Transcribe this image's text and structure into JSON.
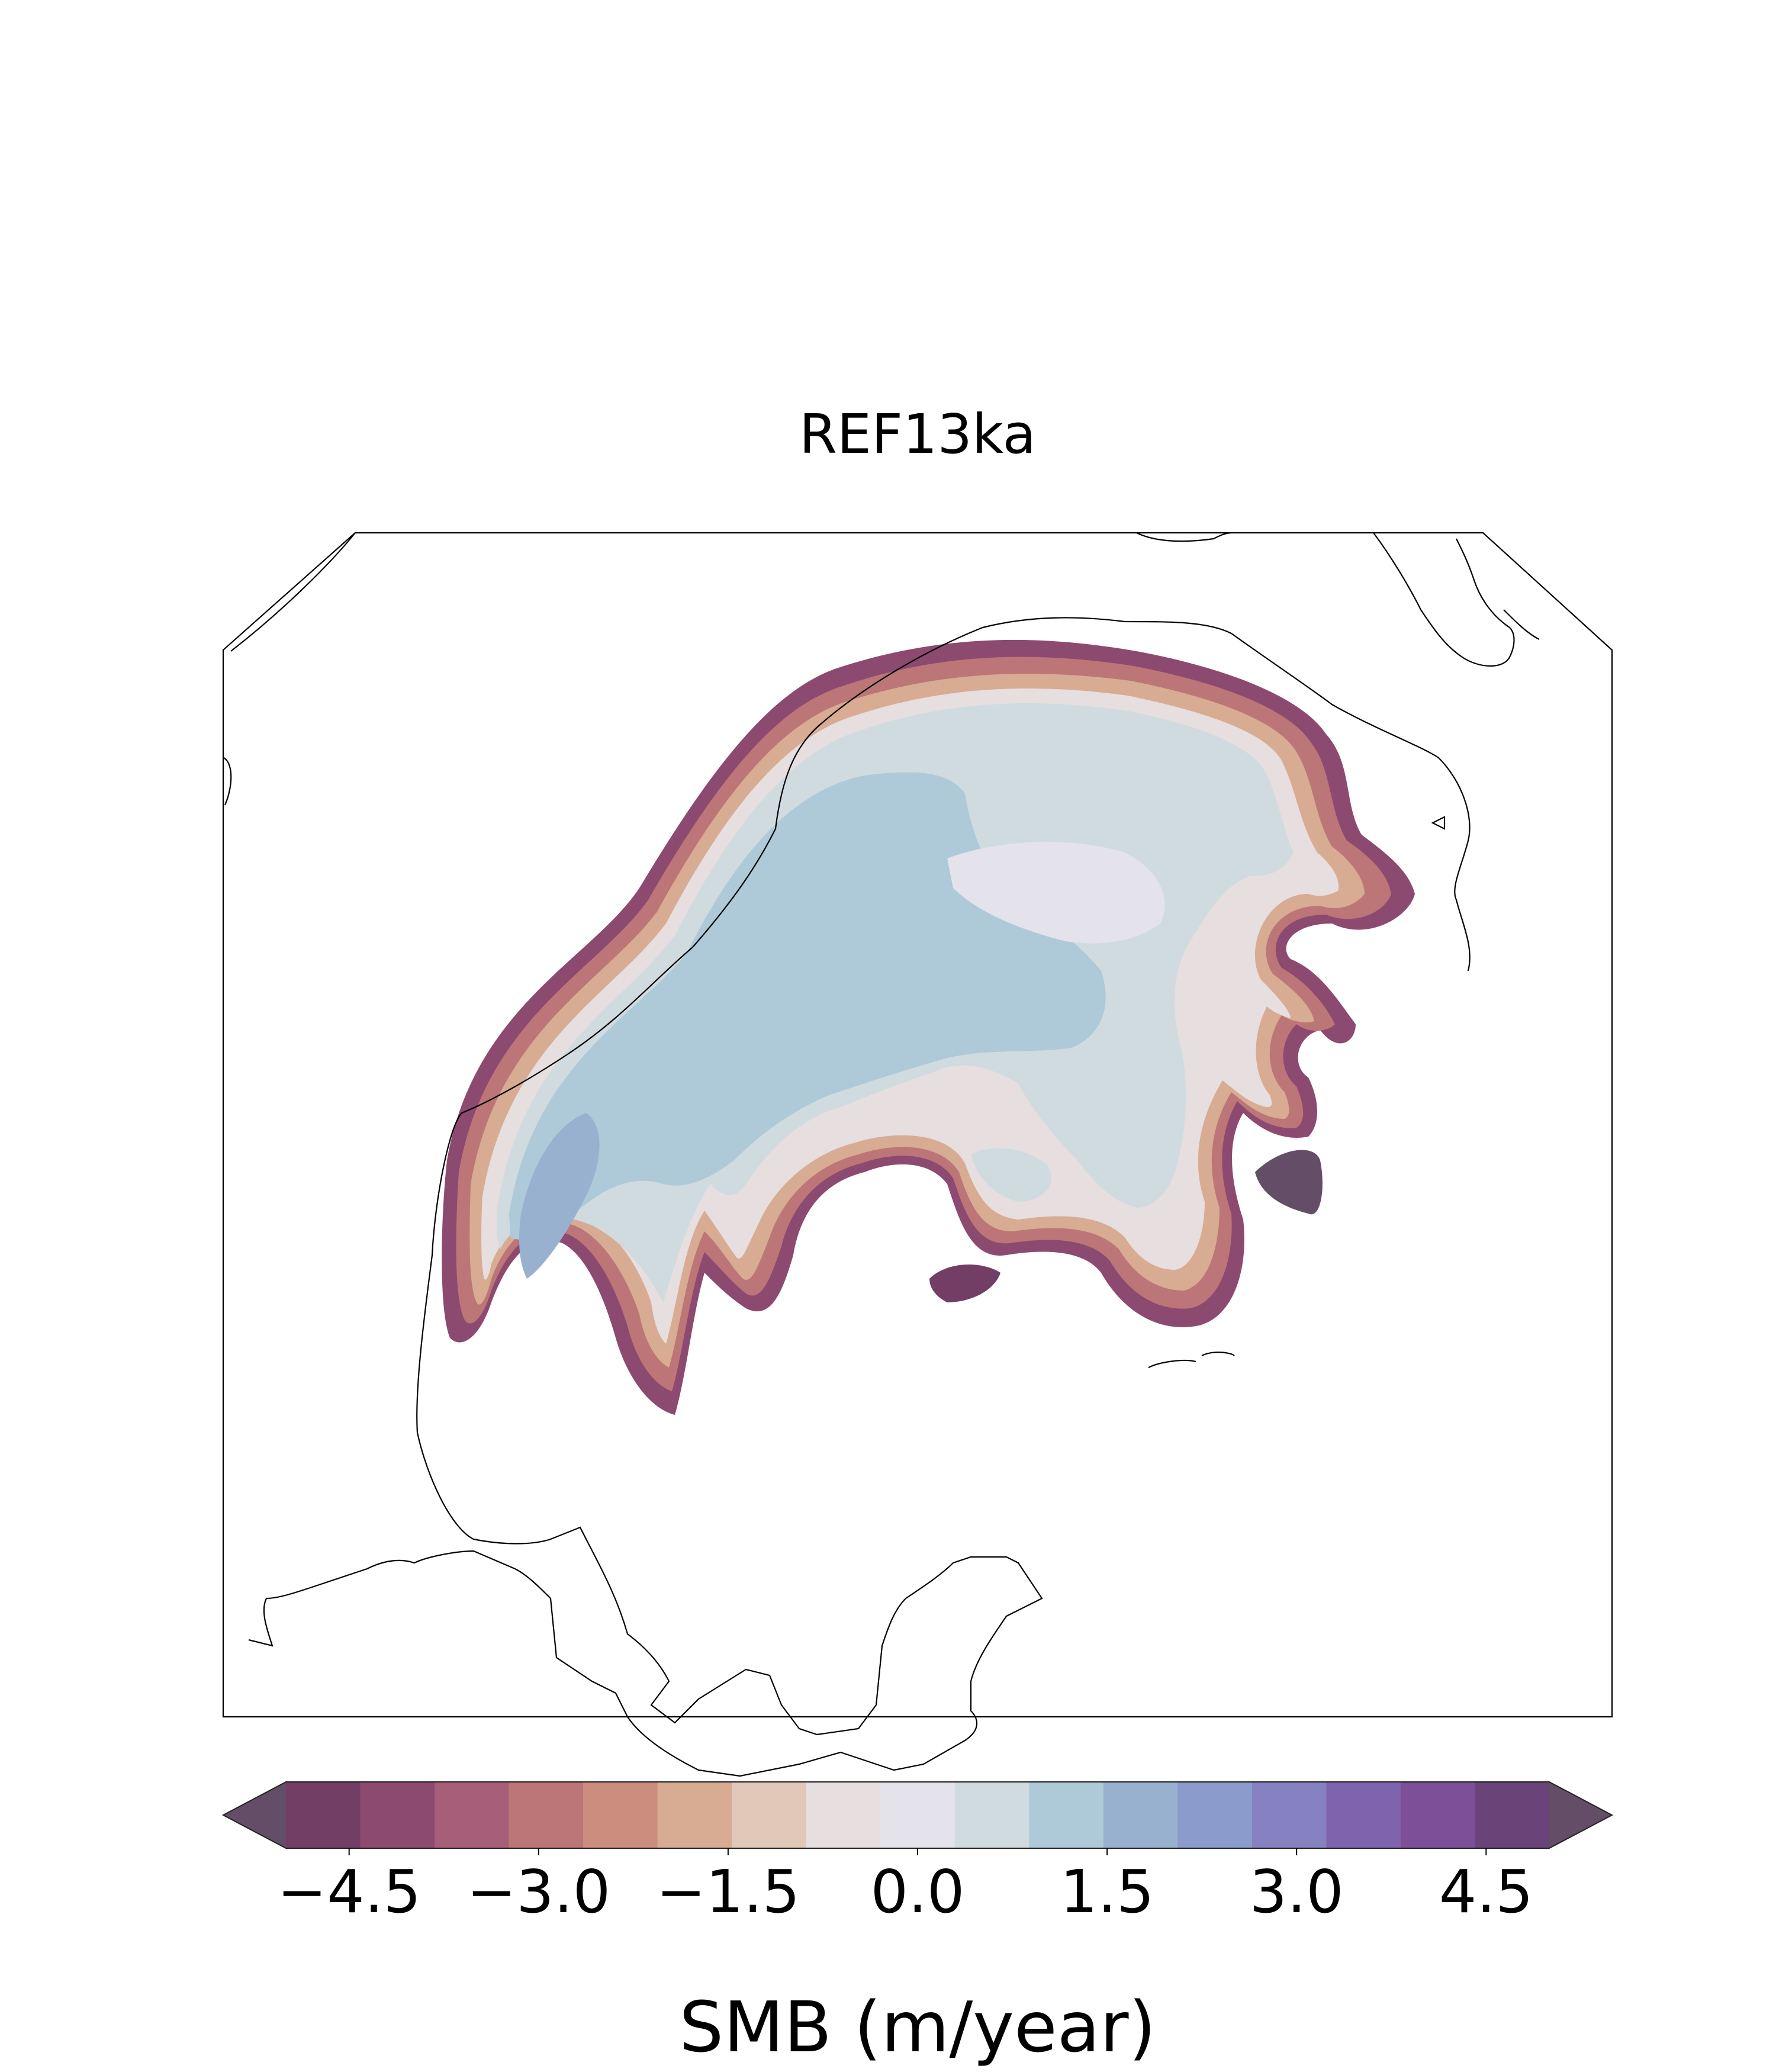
{
  "chart_data": {
    "type": "heatmap",
    "title": "REF13ka",
    "colorbar": {
      "label": "SMB (m/year)",
      "min": -5.0,
      "max": 5.0,
      "step": 0.5,
      "extend": "both",
      "ticks": [
        -4.5,
        -3.0,
        -1.5,
        0.0,
        1.5,
        3.0,
        4.5
      ],
      "tick_labels": [
        "−4.5",
        "−3.0",
        "−1.5",
        "0.0",
        "1.5",
        "3.0",
        "4.5"
      ],
      "colors": [
        "#644d67",
        "#733e66",
        "#8d4a70",
        "#a75f79",
        "#bc7677",
        "#cc8d7f",
        "#d8ab93",
        "#e2c8b9",
        "#e6dedf",
        "#e4e2ea",
        "#d0dbe0",
        "#aec9d8",
        "#97b1cf",
        "#8b9bcc",
        "#8681c1",
        "#7f64ad",
        "#7c4f98",
        "#6a4479",
        "#644d67"
      ]
    },
    "grid": false,
    "legend": "colorbar-bottom"
  }
}
